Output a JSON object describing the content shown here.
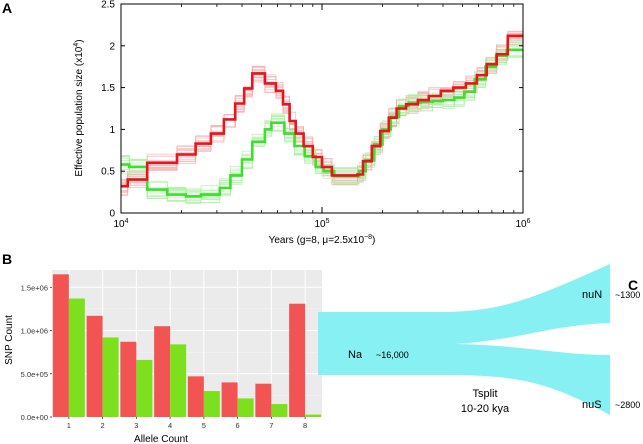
{
  "panels": {
    "a": "A",
    "b": "B",
    "c": "C"
  },
  "chart_data": [
    {
      "type": "line",
      "panel": "A",
      "xlabel": "Years (g=8, μ=2.5x10",
      "xlabel_sup": "−8",
      "xlabel_end": ")",
      "ylabel": "Effective population size (x10",
      "ylabel_sup": "4",
      "ylabel_end": ")",
      "xscale": "log",
      "xlim": [
        10000,
        1000000
      ],
      "ylim": [
        0,
        2.5
      ],
      "xticks": [
        {
          "value": 10000,
          "base": "10",
          "exp": "4"
        },
        {
          "value": 100000,
          "base": "10",
          "exp": "5"
        },
        {
          "value": 1000000,
          "base": "10",
          "exp": "6"
        }
      ],
      "yticks": [
        "0",
        "0.5",
        "1",
        "1.5",
        "2",
        "2.5"
      ],
      "yticks_values": [
        0,
        0.5,
        1,
        1.5,
        2,
        2.5
      ],
      "series": [
        {
          "color": "#e8141e",
          "bootstrap_color": "#f4a6a6",
          "steps": [
            [
              10000,
              0.32
            ],
            [
              10800,
              0.4
            ],
            [
              13500,
              0.6
            ],
            [
              19000,
              0.7
            ],
            [
              23500,
              0.83
            ],
            [
              28000,
              0.95
            ],
            [
              32500,
              1.12
            ],
            [
              37000,
              1.31
            ],
            [
              41000,
              1.49
            ],
            [
              45000,
              1.67
            ],
            [
              52000,
              1.55
            ],
            [
              59000,
              1.46
            ],
            [
              64000,
              1.3
            ],
            [
              69000,
              1.1
            ],
            [
              74000,
              0.95
            ],
            [
              81000,
              0.8
            ],
            [
              90000,
              0.67
            ],
            [
              100000,
              0.55
            ],
            [
              112000,
              0.45
            ],
            [
              150000,
              0.46
            ],
            [
              160000,
              0.62
            ],
            [
              177000,
              0.8
            ],
            [
              195000,
              0.98
            ],
            [
              215000,
              1.14
            ],
            [
              235000,
              1.25
            ],
            [
              262000,
              1.3
            ],
            [
              300000,
              1.35
            ],
            [
              340000,
              1.4
            ],
            [
              390000,
              1.46
            ],
            [
              450000,
              1.5
            ],
            [
              520000,
              1.55
            ],
            [
              590000,
              1.65
            ],
            [
              660000,
              1.78
            ],
            [
              740000,
              1.9
            ],
            [
              840000,
              2.12
            ],
            [
              1000000,
              2.12
            ]
          ]
        },
        {
          "color": "#3ede2c",
          "bootstrap_color": "#a9f0a0",
          "steps": [
            [
              10000,
              0.58
            ],
            [
              11000,
              0.55
            ],
            [
              13500,
              0.28
            ],
            [
              17000,
              0.22
            ],
            [
              21000,
              0.2
            ],
            [
              25000,
              0.22
            ],
            [
              31000,
              0.3
            ],
            [
              35000,
              0.45
            ],
            [
              40000,
              0.64
            ],
            [
              45000,
              0.85
            ],
            [
              52000,
              1.0
            ],
            [
              56000,
              1.08
            ],
            [
              65000,
              0.95
            ],
            [
              73000,
              0.8
            ],
            [
              82000,
              0.68
            ],
            [
              93000,
              0.55
            ],
            [
              102000,
              0.5
            ],
            [
              115000,
              0.44
            ],
            [
              153000,
              0.5
            ],
            [
              165000,
              0.63
            ],
            [
              182000,
              0.82
            ],
            [
              200000,
              1.0
            ],
            [
              220000,
              1.15
            ],
            [
              242000,
              1.28
            ],
            [
              270000,
              1.32
            ],
            [
              310000,
              1.33
            ],
            [
              355000,
              1.34
            ],
            [
              400000,
              1.35
            ],
            [
              455000,
              1.38
            ],
            [
              510000,
              1.45
            ],
            [
              575000,
              1.6
            ],
            [
              650000,
              1.75
            ],
            [
              735000,
              1.88
            ],
            [
              830000,
              1.95
            ],
            [
              1000000,
              1.95
            ]
          ]
        }
      ]
    },
    {
      "type": "bar",
      "panel": "B",
      "xlabel": "Allele Count",
      "ylabel": "SNP Count",
      "categories": [
        "1",
        "2",
        "3",
        "4",
        "5",
        "6",
        "7",
        "8"
      ],
      "ylim": [
        0,
        1700000
      ],
      "yticks": [
        "0.0e+00",
        "5.0e+05",
        "1.0e+06",
        "1.5e+06"
      ],
      "yticks_values": [
        0,
        500000,
        1000000,
        1500000
      ],
      "series": [
        {
          "color": "#f25454",
          "values": [
            1650000,
            1170000,
            870000,
            1050000,
            470000,
            400000,
            385000,
            1310000
          ]
        },
        {
          "color": "#7de01f",
          "values": [
            1370000,
            920000,
            660000,
            840000,
            300000,
            215000,
            150000,
            28000
          ]
        }
      ]
    }
  ],
  "diagram": {
    "fill": "#86f0f2",
    "ancestral_label": "Na",
    "ancestral_size": "~16,000",
    "top_label": "nuN",
    "top_size": "~1300",
    "bottom_label": "nuS",
    "bottom_size": "~2800",
    "split_label": "Tsplit",
    "split_time": "10-20 kya"
  }
}
